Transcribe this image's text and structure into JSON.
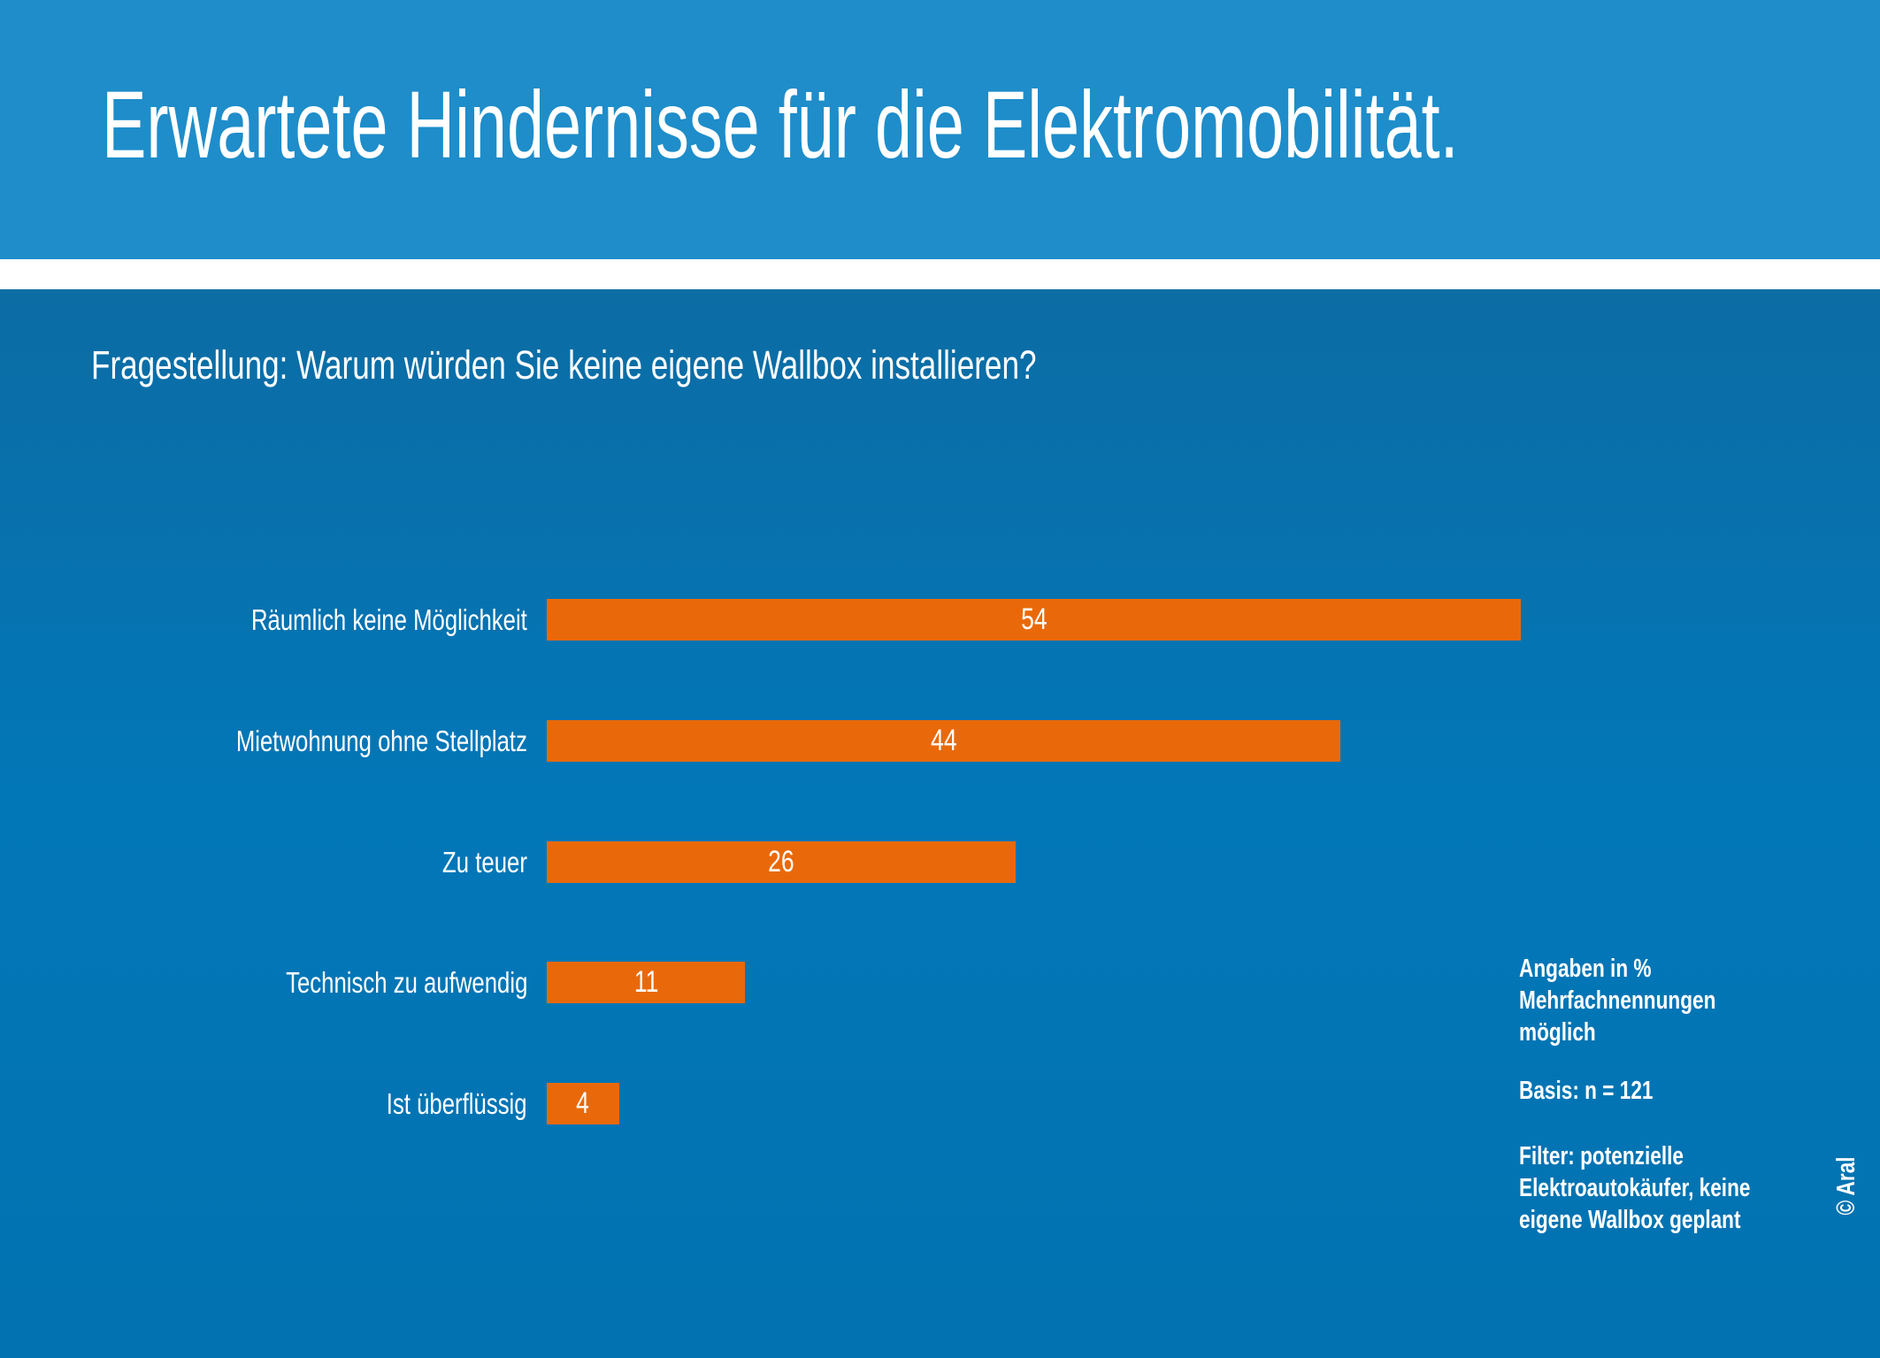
{
  "header": {
    "title": "Erwartete Hindernisse für die Elektromobilität."
  },
  "question": "Fragestellung: Warum würden Sie keine eigene Wallbox installieren?",
  "chart_data": {
    "type": "bar",
    "orientation": "horizontal",
    "title": "",
    "categories": [
      "Räumlich keine Möglichkeit",
      "Mietwohnung ohne Stellplatz",
      "Zu teuer",
      "Technisch zu aufwendig",
      "Ist überflüssig"
    ],
    "values": [
      54,
      44,
      26,
      11,
      4
    ],
    "unit": "%",
    "xlim": [
      0,
      54
    ],
    "grid": false,
    "axes_shown": false,
    "value_labels": "inside-center",
    "bar_color": "#E9690A"
  },
  "notes": {
    "units_lines": [
      "Angaben in %",
      "Mehrfachnennungen",
      "möglich"
    ],
    "basis": "Basis: n = 121",
    "filter_lines": [
      "Filter: potenzielle",
      "Elektroautokäufer, keine",
      "eigene Wallbox geplant"
    ]
  },
  "credit": "© Aral",
  "colors": {
    "header_blue": "#1E8DCA",
    "body_top": "#0C6CA4",
    "body_mid": "#0277B8",
    "body_bottom": "#0272B0",
    "bar_orange": "#E9690A",
    "text_white": "#FFFFFF"
  }
}
